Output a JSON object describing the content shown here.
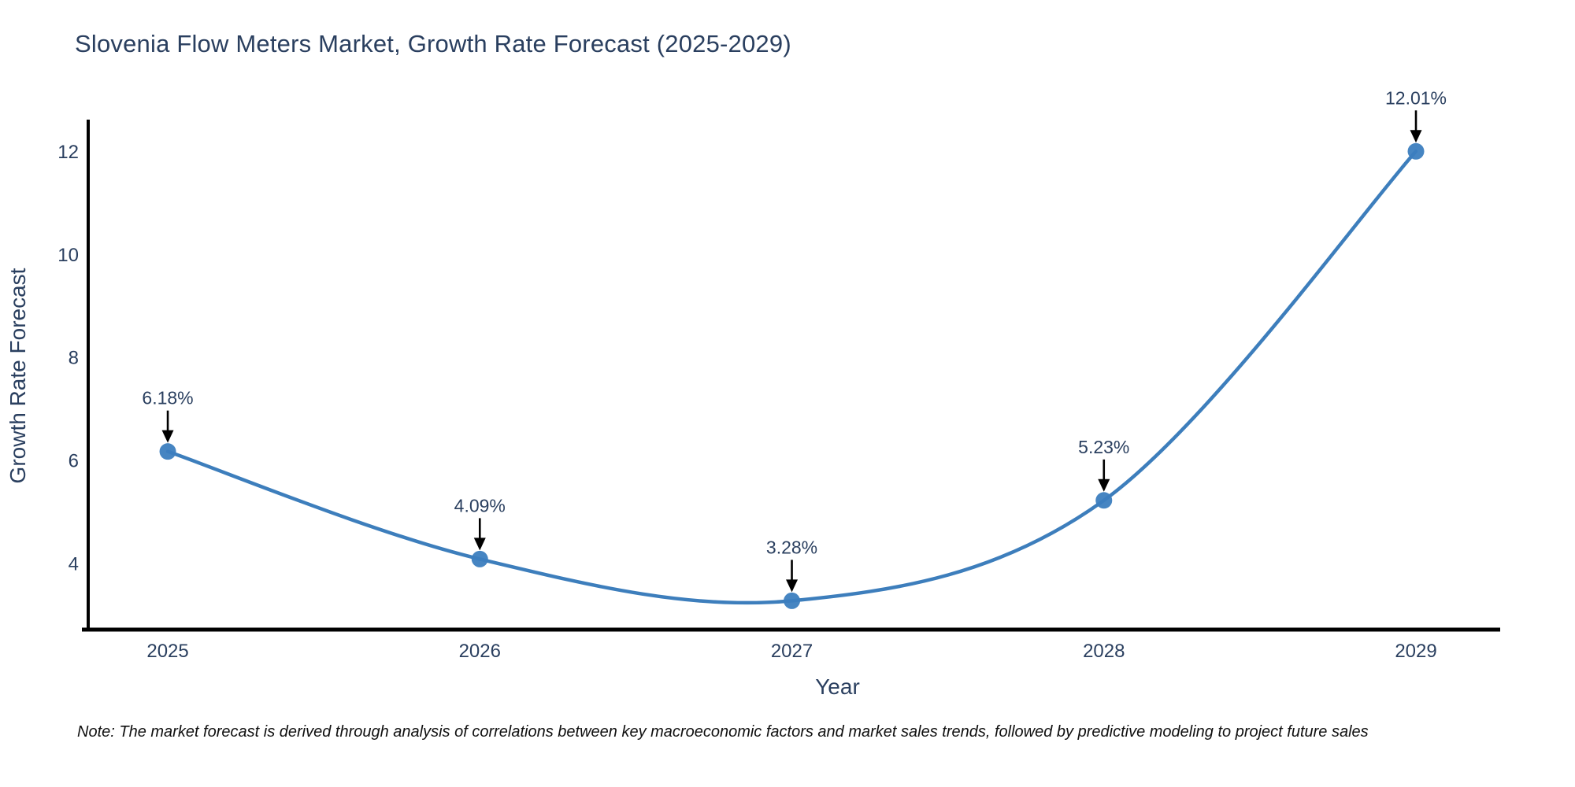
{
  "chart": {
    "title": "Slovenia Flow Meters Market, Growth Rate Forecast (2025-2029)",
    "footnote": "Note: The market forecast is derived through analysis of correlations between key macroeconomic factors and market sales trends, followed by predictive modeling to project future sales"
  },
  "chart_data": {
    "type": "line",
    "title": "Slovenia Flow Meters Market, Growth Rate Forecast (2025-2029)",
    "x": [
      2025,
      2026,
      2027,
      2028,
      2029
    ],
    "series": [
      {
        "name": "Growth Rate Forecast",
        "values": [
          6.18,
          4.09,
          3.28,
          5.23,
          12.01
        ],
        "point_labels": [
          "6.18%",
          "4.09%",
          "3.28%",
          "5.23%",
          "12.01%"
        ]
      }
    ],
    "xlabel": "Year",
    "ylabel": "Growth Rate Forecast",
    "xticks": [
      2025,
      2026,
      2027,
      2028,
      2029
    ],
    "yticks": [
      4,
      6,
      8,
      10,
      12
    ],
    "xlim": [
      2024.745,
      2029.27
    ],
    "ylim": [
      2.72,
      12.58
    ],
    "line_shape": "spline",
    "grid": false,
    "legend": false,
    "colors": {
      "line": "#3d7ebc",
      "marker": "#3c7ebf",
      "axis_line": "#000000",
      "tick_text": "#2a3f5f",
      "annotation_text": "#2a3f5f",
      "annotation_arrow": "#000000",
      "background": "#ffffff"
    },
    "note": "Note: The market forecast is derived through analysis of correlations between key macroeconomic factors and market sales trends, followed by predictive modeling to project future sales"
  }
}
